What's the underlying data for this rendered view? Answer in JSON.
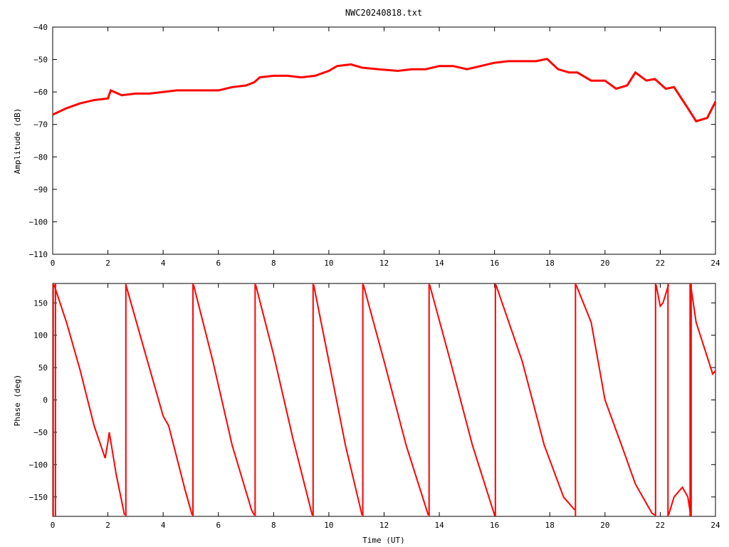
{
  "title": "NWC20240818.txt",
  "colors": {
    "series": "#ff0000",
    "axes": "#000000",
    "background": "#ffffff"
  },
  "chart_data": [
    {
      "type": "line",
      "name": "amplitude",
      "xlabel": "",
      "ylabel": "Amplitude (dB)",
      "xlim": [
        0,
        24
      ],
      "ylim": [
        -110,
        -40
      ],
      "xticks": [
        "0",
        "2",
        "4",
        "6",
        "8",
        "10",
        "12",
        "14",
        "16",
        "18",
        "20",
        "22",
        "24"
      ],
      "yticks": [
        "-110",
        "-100",
        "-90",
        "-80",
        "-70",
        "-60",
        "-50",
        "-40"
      ],
      "grid": false,
      "series": [
        {
          "x": [
            0,
            0.5,
            1.0,
            1.5,
            2.0,
            2.1,
            2.5,
            3.0,
            3.5,
            4.0,
            4.5,
            5.0,
            5.5,
            6.0,
            6.5,
            7.0,
            7.3,
            7.5,
            8.0,
            8.5,
            9.0,
            9.5,
            10.0,
            10.3,
            10.8,
            11.2,
            11.8,
            12.5,
            13.0,
            13.5,
            14.0,
            14.5,
            15.0,
            15.5,
            16.0,
            16.5,
            17.0,
            17.5,
            17.9,
            18.3,
            18.7,
            19.0,
            19.5,
            20.0,
            20.4,
            20.8,
            21.1,
            21.5,
            21.8,
            22.2,
            22.5,
            23.0,
            23.3,
            23.7,
            24.0
          ],
          "y": [
            -67,
            -65,
            -63.5,
            -62.5,
            -62,
            -59.5,
            -61,
            -60.5,
            -60.5,
            -60,
            -59.5,
            -59.5,
            -59.5,
            -59.5,
            -58.5,
            -58,
            -57,
            -55.5,
            -55,
            -55,
            -55.5,
            -55,
            -53.5,
            -52,
            -51.5,
            -52.5,
            -53,
            -53.5,
            -53,
            -53,
            -52,
            -52,
            -53,
            -52,
            -51,
            -50.5,
            -50.5,
            -50.5,
            -49.8,
            -53,
            -54,
            -54,
            -56.5,
            -56.5,
            -59,
            -58,
            -54,
            -56.5,
            -56,
            -59,
            -58.5,
            -65,
            -69,
            -68,
            -63
          ]
        }
      ]
    },
    {
      "type": "line",
      "name": "phase",
      "xlabel": "Time (UT)",
      "ylabel": "Phase (deg)",
      "xlim": [
        0,
        24
      ],
      "ylim": [
        -180,
        180
      ],
      "xticks": [
        "0",
        "2",
        "4",
        "6",
        "8",
        "10",
        "12",
        "14",
        "16",
        "18",
        "20",
        "22",
        "24"
      ],
      "yticks": [
        "-150",
        "-100",
        "-50",
        "0",
        "50",
        "100",
        "150"
      ],
      "grid": false,
      "series": [
        {
          "segments": [
            {
              "x": [
                0.05,
                0.5,
                1.0,
                1.5,
                1.9,
                2.0,
                2.05,
                2.3,
                2.6
              ],
              "y": [
                178,
                120,
                45,
                -40,
                -90,
                -65,
                -50,
                -115,
                -178
              ]
            },
            {
              "x": [
                2.65,
                3.3,
                4.0,
                4.2,
                4.8,
                5.05
              ],
              "y": [
                178,
                80,
                -25,
                -40,
                -140,
                -178
              ]
            },
            {
              "x": [
                5.1,
                5.8,
                6.5,
                7.2,
                7.3
              ],
              "y": [
                178,
                60,
                -70,
                -170,
                -178
              ]
            },
            {
              "x": [
                7.35,
                8.0,
                8.7,
                9.4
              ],
              "y": [
                178,
                70,
                -60,
                -178
              ]
            },
            {
              "x": [
                9.45,
                10.0,
                10.6,
                11.2
              ],
              "y": [
                178,
                60,
                -70,
                -178
              ]
            },
            {
              "x": [
                11.25,
                12.0,
                12.8,
                13.6
              ],
              "y": [
                178,
                60,
                -70,
                -178
              ]
            },
            {
              "x": [
                13.65,
                14.4,
                15.2,
                16.0
              ],
              "y": [
                178,
                60,
                -70,
                -178
              ]
            },
            {
              "x": [
                16.05,
                17.0,
                17.8,
                18.5,
                18.9
              ],
              "y": [
                178,
                60,
                -70,
                -150,
                -170
              ]
            },
            {
              "x": [
                18.95,
                19.5,
                20.0,
                20.6,
                21.1,
                21.7,
                21.8
              ],
              "y": [
                178,
                120,
                0,
                -70,
                -130,
                -175,
                -178
              ]
            },
            {
              "x": [
                21.85,
                22.0,
                22.1,
                22.3
              ],
              "y": [
                178,
                145,
                150,
                178
              ]
            },
            {
              "x": [
                22.3,
                22.5,
                22.8,
                23.0,
                23.1
              ],
              "y": [
                -178,
                -150,
                -135,
                -150,
                -178
              ]
            },
            {
              "x": [
                23.1,
                23.3,
                23.6,
                23.9,
                24.0
              ],
              "y": [
                178,
                120,
                80,
                40,
                45
              ]
            }
          ],
          "wraps": [
            0.02,
            0.1,
            2.65,
            5.08,
            7.33,
            9.43,
            11.23,
            13.63,
            16.03,
            18.93,
            21.83,
            22.28,
            23.08,
            23.12
          ]
        }
      ]
    }
  ]
}
